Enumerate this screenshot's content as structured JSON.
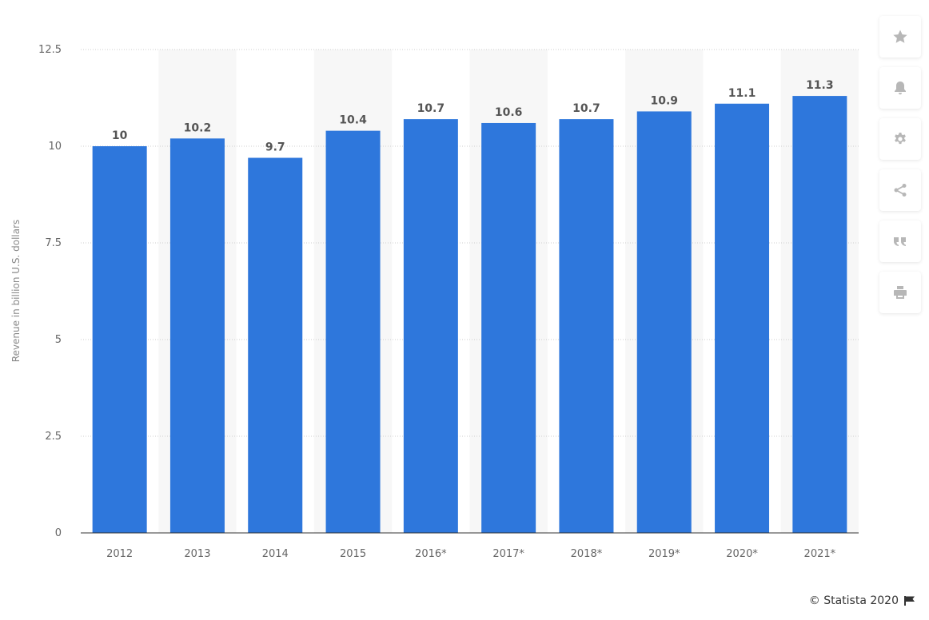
{
  "chart_data": {
    "type": "bar",
    "categories": [
      "2012",
      "2013",
      "2014",
      "2015",
      "2016*",
      "2017*",
      "2018*",
      "2019*",
      "2020*",
      "2021*"
    ],
    "values": [
      10,
      10.2,
      9.7,
      10.4,
      10.7,
      10.6,
      10.7,
      10.9,
      11.1,
      11.3
    ],
    "data_labels": [
      "10",
      "10.2",
      "9.7",
      "10.4",
      "10.7",
      "10.6",
      "10.7",
      "10.9",
      "11.1",
      "11.3"
    ],
    "ylabel": "Revenue in billion U.S. dollars",
    "ylim": [
      0,
      12.5
    ],
    "yticks": [
      "0",
      "2.5",
      "5",
      "7.5",
      "10",
      "12.5"
    ],
    "grid": true,
    "bar_color": "#2e77dc",
    "alternate_band_color": "#f7f7f7"
  },
  "toolbar": {
    "items": [
      {
        "icon": "star-icon",
        "name": "favorite-button"
      },
      {
        "icon": "bell-icon",
        "name": "notification-button"
      },
      {
        "icon": "gear-icon",
        "name": "settings-button"
      },
      {
        "icon": "share-icon",
        "name": "share-button"
      },
      {
        "icon": "quote-icon",
        "name": "cite-button"
      },
      {
        "icon": "print-icon",
        "name": "print-button"
      }
    ]
  },
  "footer": {
    "credit": "© Statista 2020",
    "flag_icon": "flag-icon"
  }
}
